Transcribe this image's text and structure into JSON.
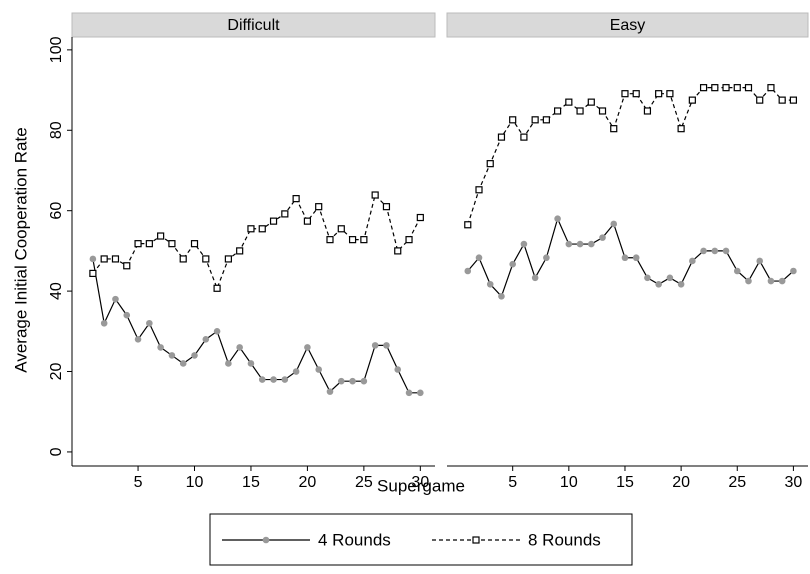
{
  "chart_data": {
    "type": "line",
    "ylabel": "Average Initial Cooperation Rate",
    "xlabel": "Supergame",
    "x": [
      1,
      2,
      3,
      4,
      5,
      6,
      7,
      8,
      9,
      10,
      11,
      12,
      13,
      14,
      15,
      16,
      17,
      18,
      19,
      20,
      21,
      22,
      23,
      24,
      25,
      26,
      27,
      28,
      29,
      30
    ],
    "xlim": [
      -0.85,
      31.3
    ],
    "xticks": [
      5,
      10,
      15,
      20,
      25,
      30
    ],
    "ylim": [
      -3.5,
      103.2
    ],
    "yticks": [
      0,
      20,
      40,
      60,
      80,
      100
    ],
    "series": [
      {
        "name": "4 Rounds",
        "color": "#000000",
        "marker_color": "#999999",
        "marker": "circle",
        "dashed": false
      },
      {
        "name": "8 Rounds",
        "color": "#000000",
        "marker_color": "#000000",
        "marker": "square",
        "dashed": true
      }
    ],
    "panels": [
      {
        "title": "Difficult",
        "series": [
          {
            "values": [
              48,
              32,
              38,
              34,
              28,
              32,
              26,
              24,
              22,
              24,
              28,
              30,
              22,
              26,
              22,
              18,
              18,
              18,
              20,
              26,
              20.5,
              15,
              17.6,
              17.6,
              17.6,
              26.5,
              26.5,
              20.5,
              14.7,
              14.7
            ]
          },
          {
            "values": [
              44.4,
              48,
              48,
              46.3,
              51.8,
              51.8,
              53.7,
              51.8,
              48,
              51.8,
              48,
              40.7,
              48,
              50,
              55.5,
              55.5,
              57.4,
              59.2,
              63,
              57.4,
              61,
              52.8,
              55.5,
              52.8,
              52.8,
              63.9,
              61,
              50,
              52.8,
              58.3
            ]
          }
        ]
      },
      {
        "title": "Easy",
        "series": [
          {
            "values": [
              45,
              48.3,
              41.7,
              38.7,
              46.7,
              51.7,
              43.3,
              48.3,
              58,
              51.7,
              51.7,
              51.7,
              53.3,
              56.7,
              48.3,
              48.3,
              43.3,
              41.7,
              43.3,
              41.7,
              47.5,
              50,
              50,
              50,
              45,
              42.5,
              47.5,
              42.5,
              42.5,
              45
            ]
          },
          {
            "values": [
              56.5,
              65.2,
              71.7,
              78.3,
              82.6,
              78.3,
              82.6,
              82.6,
              84.8,
              87,
              84.8,
              87,
              84.8,
              80.4,
              89.1,
              89.1,
              84.8,
              89.1,
              89.1,
              80.4,
              87.5,
              90.6,
              90.6,
              90.6,
              90.6,
              90.6,
              87.5,
              90.6,
              87.5,
              87.5
            ]
          }
        ]
      }
    ]
  }
}
